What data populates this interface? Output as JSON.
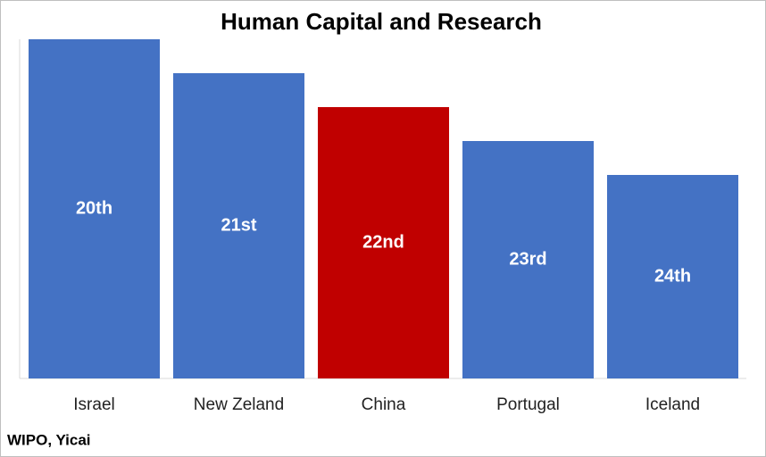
{
  "chart_data": {
    "type": "bar",
    "title": "Human Capital and Research",
    "categories": [
      "Israel",
      "New Zeland",
      "China",
      "Portugal",
      "Iceland"
    ],
    "values": [
      20,
      21,
      22,
      23,
      24
    ],
    "value_labels": [
      "20th",
      "21st",
      "22nd",
      "23rd",
      "24th"
    ],
    "colors": [
      "#4472c4",
      "#4472c4",
      "#c00000",
      "#4472c4",
      "#4472c4"
    ],
    "ylim": [
      30,
      20
    ],
    "source": "WIPO, Yicai"
  }
}
